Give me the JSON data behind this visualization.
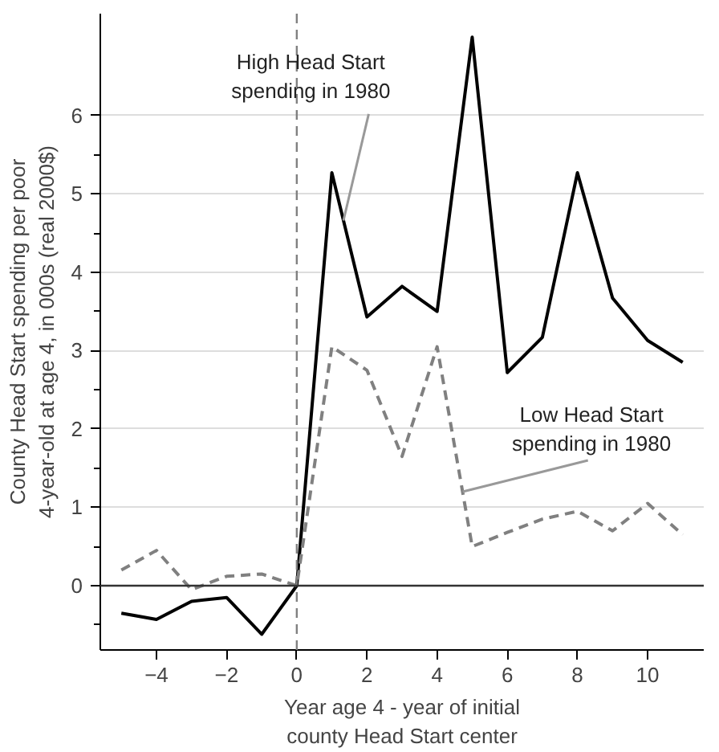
{
  "chart_data": {
    "type": "line",
    "xlabel": "Year age 4 - year of initial\ncounty Head Start center",
    "ylabel": "County Head Start spending per poor\n4-year-old at age 4, in 000s (real 2000$)",
    "x": [
      -5,
      -4,
      -3,
      -2,
      -1,
      0,
      1,
      2,
      3,
      4,
      5,
      6,
      7,
      8,
      9,
      10,
      11
    ],
    "series": [
      {
        "color": "#000000",
        "line_style": "solid",
        "values": [
          -0.35,
          -0.43,
          -0.2,
          -0.15,
          -0.62,
          0,
          5.27,
          3.43,
          3.82,
          3.5,
          7.0,
          2.72,
          3.17,
          5.27,
          3.67,
          3.13,
          2.85
        ]
      },
      {
        "color": "#808080",
        "line_style": "dashed",
        "values": [
          0.2,
          0.45,
          -0.05,
          0.12,
          0.15,
          0,
          3.05,
          2.75,
          1.65,
          3.05,
          0.5,
          0.68,
          0.85,
          0.95,
          0.7,
          1.05,
          0.65
        ]
      }
    ],
    "annotations": [
      {
        "text": "High Head Start\nspending in 1980",
        "x": 1.33,
        "y": 4.66
      },
      {
        "text": "Low Head Start\nspending in 1980",
        "x": 4.73,
        "y": 1.2
      }
    ],
    "ref_lines": [
      {
        "axis": "x",
        "value": 0,
        "color": "#808080",
        "line_style": "dashed"
      },
      {
        "axis": "y",
        "value": 0,
        "color": "#333333",
        "line_style": "solid"
      }
    ],
    "xlim": [
      -5.6,
      11.6
    ],
    "ylim": [
      -0.82,
      7.3
    ],
    "xticks": [
      -4,
      -2,
      0,
      2,
      4,
      6,
      8,
      10
    ],
    "yticks": [
      0,
      1,
      2,
      3,
      4,
      5,
      6,
      {
        "value": -0.5,
        "label": null
      },
      {
        "value": 0.5,
        "label": null
      },
      {
        "value": 1.5,
        "label": null
      },
      {
        "value": 2.5,
        "label": null
      },
      {
        "value": 3.5,
        "label": null
      },
      {
        "value": 4.5,
        "label": null
      },
      {
        "value": 5.5,
        "label": null
      }
    ],
    "grid": "y",
    "marker": "none"
  }
}
